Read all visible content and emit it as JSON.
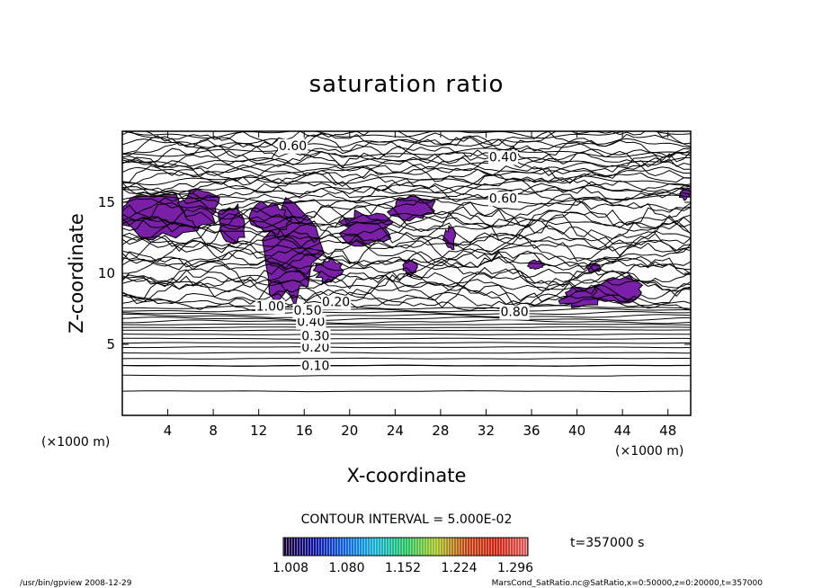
{
  "chart_data": {
    "type": "heatmap",
    "title": "saturation ratio",
    "xlabel": "X-coordinate",
    "ylabel": "Z-coordinate",
    "x_unit": "(×1000 m)",
    "y_unit": "(×1000 m)",
    "xlim": [
      0,
      50
    ],
    "ylim": [
      0,
      20
    ],
    "x_ticks": [
      "4",
      "8",
      "12",
      "16",
      "20",
      "24",
      "28",
      "32",
      "36",
      "40",
      "44",
      "48"
    ],
    "y_ticks": [
      "5",
      "10",
      "15"
    ],
    "contour_interval_text": "CONTOUR INTERVAL = 5.000E-02",
    "contour_interval": 0.05,
    "contour_labels": [
      {
        "text": "0.10",
        "x": 17.0,
        "z": 3.5
      },
      {
        "text": "0.20",
        "x": 17.0,
        "z": 4.8
      },
      {
        "text": "0.30",
        "x": 17.0,
        "z": 5.6
      },
      {
        "text": "0.40",
        "x": 16.6,
        "z": 6.6
      },
      {
        "text": "0.50",
        "x": 16.3,
        "z": 7.4
      },
      {
        "text": "1.00",
        "x": 13.0,
        "z": 7.7
      },
      {
        "text": "0.20",
        "x": 18.8,
        "z": 8.0
      },
      {
        "text": "0.60",
        "x": 15.0,
        "z": 19.0
      },
      {
        "text": "0.40",
        "x": 33.5,
        "z": 18.2
      },
      {
        "text": "0.60",
        "x": 33.5,
        "z": 15.3
      },
      {
        "text": "0.80",
        "x": 34.5,
        "z": 7.3
      }
    ],
    "color_scale": {
      "min": 1.008,
      "max": 1.296,
      "labels": [
        "1.008",
        "1.080",
        "1.152",
        "1.224",
        "1.296"
      ],
      "colors": [
        "#1a0030",
        "#1010a0",
        "#1060e0",
        "#10b0d0",
        "#20c060",
        "#a0c020",
        "#c04010",
        "#d02010",
        "#e06060"
      ],
      "fill_color": "#7a1fa8"
    },
    "time_label": "t=357000 s",
    "grid": false
  },
  "footer": {
    "left": "/usr/bin/gpview   2008-12-29",
    "right": "MarsCond_SatRatio.nc@SatRatio,x=0:50000,z=0:20000,t=357000"
  }
}
